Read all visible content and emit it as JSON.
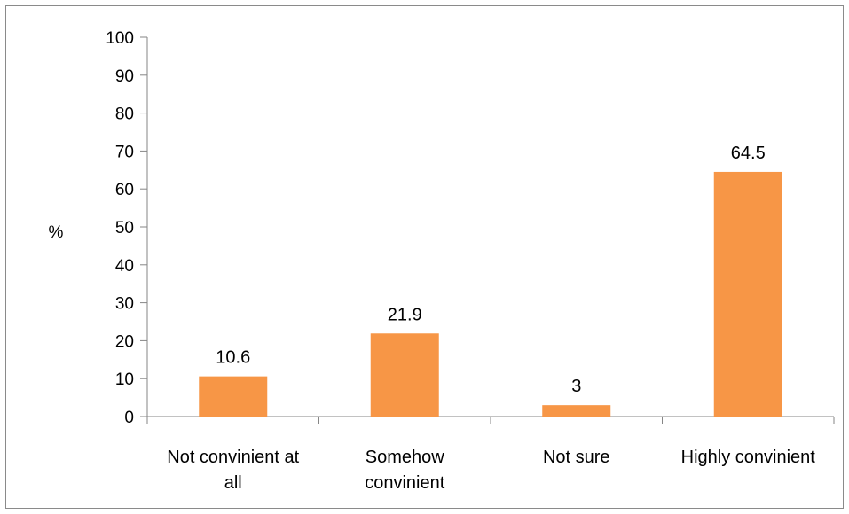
{
  "chart_data": {
    "type": "bar",
    "categories": [
      [
        "Not convinient at",
        "all"
      ],
      [
        "Somehow",
        "convinient"
      ],
      [
        "Not sure"
      ],
      [
        "Highly convinient"
      ]
    ],
    "values": [
      10.6,
      21.9,
      3,
      64.5
    ],
    "value_labels": [
      "10.6",
      "21.9",
      "3",
      "64.5"
    ],
    "title": "",
    "xlabel": "",
    "ylabel": "%",
    "ylim": [
      0,
      100
    ],
    "yticks": [
      "0",
      "10",
      "20",
      "30",
      "40",
      "50",
      "60",
      "70",
      "80",
      "90",
      "100"
    ],
    "grid": false,
    "legend": "none",
    "bar_color": "#F79646"
  }
}
